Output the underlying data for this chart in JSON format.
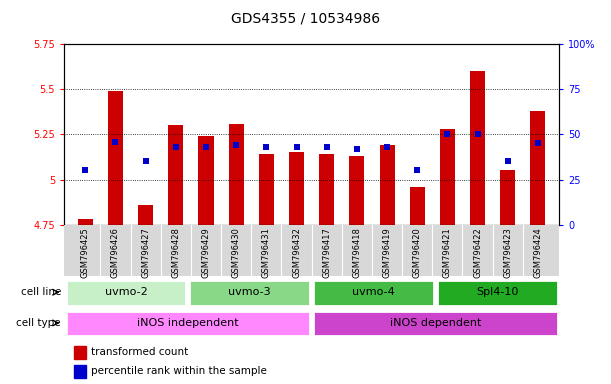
{
  "title": "GDS4355 / 10534986",
  "samples": [
    "GSM796425",
    "GSM796426",
    "GSM796427",
    "GSM796428",
    "GSM796429",
    "GSM796430",
    "GSM796431",
    "GSM796432",
    "GSM796417",
    "GSM796418",
    "GSM796419",
    "GSM796420",
    "GSM796421",
    "GSM796422",
    "GSM796423",
    "GSM796424"
  ],
  "bar_values": [
    4.78,
    5.49,
    4.86,
    5.3,
    5.24,
    5.31,
    5.14,
    5.15,
    5.14,
    5.13,
    5.19,
    4.96,
    5.28,
    5.6,
    5.05,
    5.38
  ],
  "blue_percentiles": [
    30,
    46,
    35,
    43,
    43,
    44,
    43,
    43,
    43,
    42,
    43,
    30,
    50,
    50,
    35,
    45
  ],
  "ylim_left": [
    4.75,
    5.75
  ],
  "ylim_right": [
    0,
    100
  ],
  "yticks_left": [
    4.75,
    5.0,
    5.25,
    5.5,
    5.75
  ],
  "yticks_right": [
    0,
    25,
    50,
    75,
    100
  ],
  "ytick_labels_left": [
    "4.75",
    "5",
    "5.25",
    "5.5",
    "5.75"
  ],
  "ytick_labels_right": [
    "0",
    "25",
    "50",
    "75",
    "100%"
  ],
  "bar_color": "#cc0000",
  "blue_color": "#0000cc",
  "bar_bottom": 4.75,
  "cell_line_groups": [
    {
      "label": "uvmo-2",
      "start": 0,
      "end": 3
    },
    {
      "label": "uvmo-3",
      "start": 4,
      "end": 7
    },
    {
      "label": "uvmo-4",
      "start": 8,
      "end": 11
    },
    {
      "label": "Spl4-10",
      "start": 12,
      "end": 15
    }
  ],
  "cell_line_colors": [
    "#c8f0c8",
    "#88d888",
    "#44bb44",
    "#22aa22"
  ],
  "cell_type_groups": [
    {
      "label": "iNOS independent",
      "start": 0,
      "end": 7
    },
    {
      "label": "iNOS dependent",
      "start": 8,
      "end": 15
    }
  ],
  "cell_type_colors": [
    "#ff88ff",
    "#cc44cc"
  ],
  "legend_items": [
    {
      "label": "transformed count",
      "color": "#cc0000"
    },
    {
      "label": "percentile rank within the sample",
      "color": "#0000cc"
    }
  ],
  "title_fontsize": 10,
  "tick_fontsize": 7,
  "sample_fontsize": 6,
  "group_label_fontsize": 8,
  "row_label_fontsize": 7.5
}
